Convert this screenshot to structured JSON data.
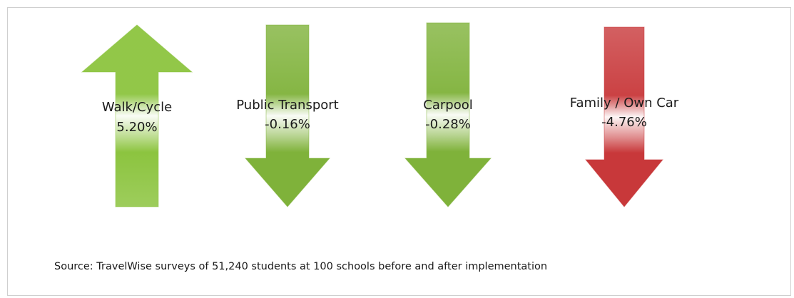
{
  "items": [
    {
      "label": "Walk/Cycle",
      "value": "5.20%",
      "direction": "up",
      "color": "#8cc43f"
    },
    {
      "label": "Public Transport",
      "value": "-0.16%",
      "direction": "down",
      "color": "#7fb23a"
    },
    {
      "label": "Carpool",
      "value": "-0.28%",
      "direction": "down",
      "color": "#7fb23a"
    },
    {
      "label": "Family / Own Car",
      "value": "-4.76%",
      "direction": "down",
      "color": "#c8383a"
    }
  ],
  "source": "Source: TravelWise surveys of 51,240 students at 100 schools before and after implementation"
}
